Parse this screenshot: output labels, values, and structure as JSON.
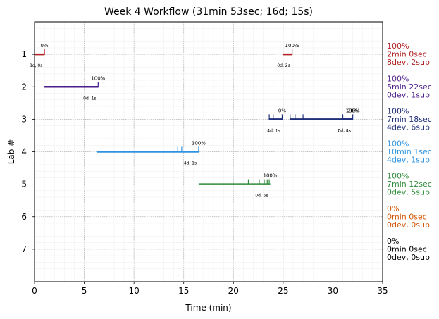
{
  "chart_data": {
    "type": "timeline",
    "title": "Week 4 Workflow (31min 53sec; 16d; 15s)",
    "xlabel": "Time (min)",
    "ylabel": "Lab #",
    "xlim": [
      0,
      35
    ],
    "ylim": [
      0,
      8
    ],
    "x_ticks": [
      0,
      5,
      10,
      15,
      20,
      25,
      30,
      35
    ],
    "y_ticks": [
      1,
      2,
      3,
      4,
      5,
      6,
      7
    ],
    "grid": true,
    "labs": [
      {
        "lab": 1,
        "color": "#b22222",
        "segments": [
          {
            "start": 0.0,
            "end": 1.0,
            "submissions": [
              1.0
            ],
            "pct_label": "0%",
            "count_label": "8d, 0s"
          },
          {
            "start": 25.0,
            "end": 25.9,
            "submissions": [
              25.9
            ],
            "pct_label": "100%",
            "count_label": "0d, 2s"
          }
        ],
        "summary": [
          "100%",
          "2min 0sec",
          "8dev, 2sub"
        ]
      },
      {
        "lab": 2,
        "color": "#4b1c8a",
        "segments": [
          {
            "start": 1.0,
            "end": 6.4,
            "submissions": [
              6.4
            ],
            "pct_label": "100%",
            "count_label": "0d, 1s"
          }
        ],
        "summary": [
          "100%",
          "5min 22sec",
          "0dev, 1sub"
        ]
      },
      {
        "lab": 3,
        "color": "#1f2f7a",
        "segments": [
          {
            "start": 23.6,
            "end": 24.9,
            "submissions": [
              23.6,
              24.0,
              24.9
            ],
            "pct_label": "0%",
            "count_label": "4d, 1s"
          },
          {
            "start": 25.7,
            "end": 32.0,
            "submissions": [
              25.7,
              26.2,
              27.0,
              31.0,
              32.0
            ],
            "pct_label": "20%",
            "count_label": "0d, 4s"
          },
          {
            "start": 31.0,
            "end": 32.0,
            "submissions": [],
            "pct_label": "100%",
            "count_label": "0d, 1s"
          }
        ],
        "summary": [
          "100%",
          "7min 18sec",
          "4dev, 6sub"
        ]
      },
      {
        "lab": 4,
        "color": "#2e93e0",
        "segments": [
          {
            "start": 6.3,
            "end": 16.5,
            "submissions": [
              14.4,
              14.8,
              16.5
            ],
            "pct_label": "100%",
            "count_label": "4d, 1s"
          }
        ],
        "summary": [
          "100%",
          "10min 1sec",
          "4dev, 1sub"
        ]
      },
      {
        "lab": 5,
        "color": "#2e8b3a",
        "segments": [
          {
            "start": 16.5,
            "end": 23.7,
            "submissions": [
              21.5,
              22.6,
              23.1,
              23.4,
              23.6
            ],
            "pct_label": "100%",
            "count_label": "0d, 5s"
          }
        ],
        "summary": [
          "100%",
          "7min 12sec",
          "0dev, 5sub"
        ]
      },
      {
        "lab": 6,
        "color": "#d35400",
        "segments": [],
        "summary": [
          "0%",
          "0min 0sec",
          "0dev, 0sub"
        ]
      },
      {
        "lab": 7,
        "color": "#000000",
        "segments": [],
        "summary": [
          "0%",
          "0min 0sec",
          "0dev, 0sub"
        ]
      }
    ]
  }
}
